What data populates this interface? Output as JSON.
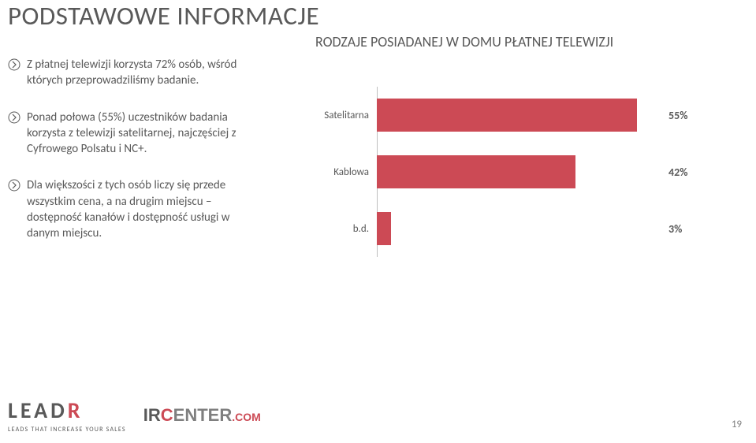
{
  "title": "PODSTAWOWE INFORMACJE",
  "subtitle": "RODZAJE POSIADANEJ W DOMU PŁATNEJ TELEWIZJI",
  "pageNumber": "19",
  "bullets": [
    "Z płatnej telewizji korzysta 72% osób, wśród których przeprowadziliśmy badanie.",
    "Ponad połowa (55%) uczestników badania korzysta z telewizji satelitarnej, najczęściej z Cyfrowego Polsatu i NC+.",
    "Dla większości z tych osób liczy się przede wszystkim cena, a na drugim miejscu – dostępność kanałów i dostępność usługi w danym miejscu."
  ],
  "chart": {
    "type": "bar-horizontal",
    "xlim": [
      0,
      60
    ],
    "barColor": "#cc4a55",
    "axisColor": "#bfbfbf",
    "trackPx": 360,
    "items": [
      {
        "label": "Satelitarna",
        "value": 55,
        "valueLabel": "55%"
      },
      {
        "label": "Kablowa",
        "value": 42,
        "valueLabel": "42%"
      },
      {
        "label": "b.d.",
        "value": 3,
        "valueLabel": "3%"
      }
    ]
  },
  "footer": {
    "leadr": {
      "prefix": "LEAD",
      "accent": "R",
      "tagline": "LEADS THAT INCREASE YOUR SALES"
    },
    "ircenter": {
      "ir": "IR",
      "c": "C",
      "enter": "ENTER",
      "com": ".COM"
    }
  }
}
